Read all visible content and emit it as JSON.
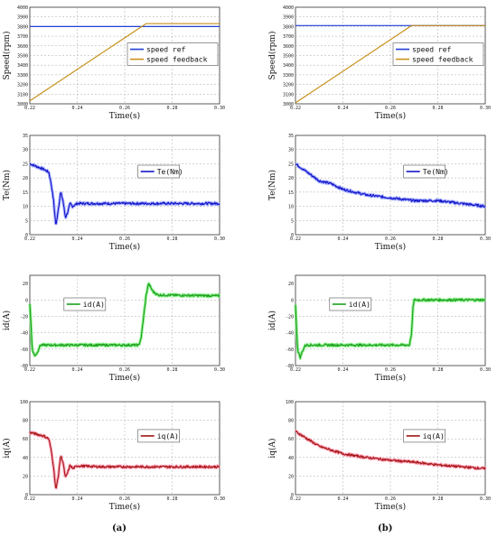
{
  "panel_labels": [
    "(a)",
    "(b)"
  ],
  "chart_data": [
    {
      "id": "a-speed",
      "type": "line",
      "col": "a",
      "row": 0,
      "xlabel": "Time(s)",
      "ylabel": "Speed(rpm)",
      "xlim": [
        0.22,
        0.3
      ],
      "ylim": [
        3000,
        4000
      ],
      "xticks": [
        "0.22",
        "0.24",
        "0.26",
        "0.28",
        "0.30"
      ],
      "yticks": [
        "3000",
        "3100",
        "3200",
        "3300",
        "3400",
        "3500",
        "3600",
        "3700",
        "3800",
        "3900",
        "4000"
      ],
      "legend": {
        "position": "center-right",
        "entries": [
          "speed ref",
          "speed feedback"
        ]
      },
      "series": [
        {
          "name": "speed ref",
          "color": "#1f3fd6",
          "x": [
            0.22,
            0.3
          ],
          "y": [
            3800,
            3800
          ]
        },
        {
          "name": "speed feedback",
          "color": "#c8911a",
          "x": [
            0.22,
            0.269,
            0.3
          ],
          "y": [
            3030,
            3830,
            3830
          ]
        }
      ]
    },
    {
      "id": "b-speed",
      "type": "line",
      "col": "b",
      "row": 0,
      "xlabel": "Time(s)",
      "ylabel": "Speed(rpm)",
      "xlim": [
        0.22,
        0.3
      ],
      "ylim": [
        3000,
        4000
      ],
      "xticks": [
        "0.22",
        "0.24",
        "0.26",
        "0.28",
        "0.30"
      ],
      "yticks": [
        "3000",
        "3100",
        "3200",
        "3300",
        "3400",
        "3500",
        "3600",
        "3700",
        "3800",
        "3900",
        "4000"
      ],
      "legend": {
        "position": "center-right",
        "entries": [
          "speed ref",
          "speed feedback"
        ]
      },
      "series": [
        {
          "name": "speed ref",
          "color": "#1f3fd6",
          "x": [
            0.22,
            0.3
          ],
          "y": [
            3810,
            3810
          ]
        },
        {
          "name": "speed feedback",
          "color": "#c8911a",
          "x": [
            0.22,
            0.269,
            0.3
          ],
          "y": [
            3010,
            3810,
            3810
          ]
        }
      ]
    },
    {
      "id": "a-te",
      "type": "line",
      "col": "a",
      "row": 1,
      "xlabel": "Time(s)",
      "ylabel": "Te(Nm)",
      "xlim": [
        0.22,
        0.3
      ],
      "ylim": [
        0,
        35
      ],
      "xticks": [
        "0.22",
        "0.24",
        "0.26",
        "0.28",
        "0.30"
      ],
      "yticks": [
        "0",
        "5",
        "10",
        "15",
        "20",
        "25",
        "30",
        "35"
      ],
      "legend": {
        "position": "center-right",
        "entries": [
          "Te(Nm)"
        ]
      },
      "series": [
        {
          "name": "Te(Nm)",
          "color": "#1414c8",
          "halo": "#9aa6ff",
          "x": [
            0.22,
            0.226,
            0.228,
            0.229,
            0.23,
            0.231,
            0.232,
            0.233,
            0.234,
            0.235,
            0.236,
            0.237,
            0.238,
            0.24,
            0.245,
            0.25,
            0.26,
            0.27,
            0.28,
            0.29,
            0.3
          ],
          "y": [
            25,
            23,
            22,
            18,
            12,
            3,
            9,
            15,
            12,
            6,
            8,
            11,
            10,
            11,
            11,
            11,
            11,
            11,
            11,
            11,
            11
          ]
        }
      ]
    },
    {
      "id": "b-te",
      "type": "line",
      "col": "b",
      "row": 1,
      "xlabel": "Time(s)",
      "ylabel": "Te(Nm)",
      "xlim": [
        0.22,
        0.3
      ],
      "ylim": [
        0,
        35
      ],
      "xticks": [
        "0.22",
        "0.24",
        "0.26",
        "0.28",
        "0.30"
      ],
      "yticks": [
        "0",
        "5",
        "10",
        "15",
        "20",
        "25",
        "30",
        "35"
      ],
      "legend": {
        "position": "center-right",
        "entries": [
          "Te(Nm)"
        ]
      },
      "series": [
        {
          "name": "Te(Nm)",
          "color": "#1414c8",
          "halo": "#9aa6ff",
          "x": [
            0.22,
            0.225,
            0.23,
            0.235,
            0.24,
            0.25,
            0.26,
            0.27,
            0.28,
            0.29,
            0.3
          ],
          "y": [
            25,
            22,
            19,
            18,
            16,
            14,
            13,
            12,
            12,
            11,
            10
          ]
        }
      ]
    },
    {
      "id": "a-id",
      "type": "line",
      "col": "a",
      "row": 2,
      "xlabel": "Time(s)",
      "ylabel": "id(A)",
      "xlim": [
        0.22,
        0.3
      ],
      "ylim": [
        -80,
        30
      ],
      "xticks": [
        "0.22",
        "0.24",
        "0.26",
        "0.28",
        "0.30"
      ],
      "yticks": [
        "-80",
        "-60",
        "-40",
        "-20",
        "0",
        "20"
      ],
      "legend": {
        "position": "center-left",
        "entries": [
          "id(A)"
        ]
      },
      "series": [
        {
          "name": "id(A)",
          "color": "#1e9e1e",
          "halo": "#7cf07c",
          "x": [
            0.22,
            0.2205,
            0.221,
            0.222,
            0.223,
            0.224,
            0.2245,
            0.225,
            0.26,
            0.265,
            0.266,
            0.267,
            0.268,
            0.269,
            0.27,
            0.271,
            0.272,
            0.274,
            0.3
          ],
          "y": [
            -5,
            -30,
            -60,
            -68,
            -65,
            -58,
            -55,
            -55,
            -55,
            -55,
            -55,
            -45,
            -20,
            5,
            20,
            15,
            10,
            6,
            5
          ]
        }
      ]
    },
    {
      "id": "b-id",
      "type": "line",
      "col": "b",
      "row": 2,
      "xlabel": "Time(s)",
      "ylabel": "id(A)",
      "xlim": [
        0.22,
        0.3
      ],
      "ylim": [
        -80,
        30
      ],
      "xticks": [
        "0.22",
        "0.24",
        "0.26",
        "0.28",
        "0.30"
      ],
      "yticks": [
        "-80",
        "-60",
        "-40",
        "-20",
        "0",
        "20"
      ],
      "legend": {
        "position": "center-left",
        "entries": [
          "id(A)"
        ]
      },
      "series": [
        {
          "name": "id(A)",
          "color": "#1e9e1e",
          "halo": "#7cf07c",
          "x": [
            0.22,
            0.2205,
            0.221,
            0.222,
            0.223,
            0.224,
            0.2245,
            0.225,
            0.26,
            0.268,
            0.269,
            0.2695,
            0.27,
            0.271,
            0.3
          ],
          "y": [
            -5,
            -40,
            -62,
            -70,
            -62,
            -56,
            -55,
            -55,
            -55,
            -55,
            -40,
            -10,
            0,
            0,
            0
          ]
        }
      ]
    },
    {
      "id": "a-iq",
      "type": "line",
      "col": "a",
      "row": 3,
      "xlabel": "Time(s)",
      "ylabel": "iq(A)",
      "xlim": [
        0.22,
        0.3
      ],
      "ylim": [
        0,
        100
      ],
      "xticks": [
        "0.22",
        "0.24",
        "0.26",
        "0.28",
        "0.30"
      ],
      "yticks": [
        "0",
        "20",
        "40",
        "60",
        "80",
        "100"
      ],
      "legend": {
        "position": "center-right",
        "entries": [
          "iq(A)"
        ]
      },
      "series": [
        {
          "name": "iq(A)",
          "color": "#a31414",
          "halo": "#ff9ab2",
          "x": [
            0.22,
            0.226,
            0.228,
            0.229,
            0.23,
            0.231,
            0.232,
            0.233,
            0.234,
            0.235,
            0.236,
            0.237,
            0.238,
            0.24,
            0.25,
            0.26,
            0.27,
            0.28,
            0.29,
            0.3
          ],
          "y": [
            67,
            63,
            60,
            48,
            30,
            5,
            20,
            42,
            35,
            18,
            24,
            32,
            28,
            31,
            30,
            30,
            30,
            30,
            30,
            30
          ]
        }
      ]
    },
    {
      "id": "b-iq",
      "type": "line",
      "col": "b",
      "row": 3,
      "xlabel": "Time(s)",
      "ylabel": "iq(A)",
      "xlim": [
        0.22,
        0.3
      ],
      "ylim": [
        0,
        100
      ],
      "xticks": [
        "0.22",
        "0.24",
        "0.26",
        "0.28",
        "0.30"
      ],
      "yticks": [
        "0",
        "20",
        "40",
        "60",
        "80",
        "100"
      ],
      "legend": {
        "position": "center-right",
        "entries": [
          "iq(A)"
        ]
      },
      "series": [
        {
          "name": "iq(A)",
          "color": "#a31414",
          "halo": "#ff9ab2",
          "x": [
            0.22,
            0.225,
            0.23,
            0.235,
            0.24,
            0.25,
            0.26,
            0.27,
            0.28,
            0.29,
            0.3
          ],
          "y": [
            68,
            60,
            52,
            48,
            44,
            40,
            37,
            35,
            32,
            30,
            28
          ]
        }
      ]
    }
  ]
}
